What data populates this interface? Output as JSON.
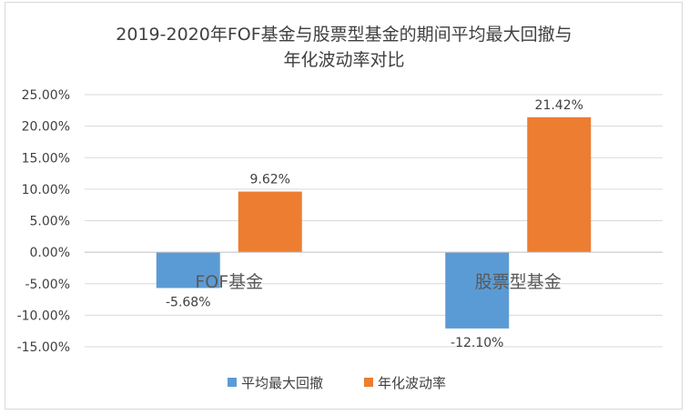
{
  "chart_data": {
    "type": "bar",
    "title_lines": [
      "2019-2020年FOF基金与股票型基金的期间平均最大回撤与",
      "年化波动率对比"
    ],
    "categories": [
      "FOF基金",
      "股票型基金"
    ],
    "series": [
      {
        "name": "平均最大回撤",
        "values": [
          -5.68,
          -12.1
        ],
        "labels": [
          "-5.68%",
          "-12.10%"
        ],
        "color": "#5b9bd5"
      },
      {
        "name": "年化波动率",
        "values": [
          9.62,
          21.42
        ],
        "labels": [
          "9.62%",
          "21.42%"
        ],
        "color": "#ed7d31"
      }
    ],
    "ylim": [
      -15,
      25
    ],
    "ytick_values": [
      25,
      20,
      15,
      10,
      5,
      0,
      -5,
      -10,
      -15
    ],
    "ytick_labels": [
      "25.00%",
      "20.00%",
      "15.00%",
      "10.00%",
      "5.00%",
      "0.00%",
      "-5.00%",
      "-10.00%",
      "-15.00%"
    ],
    "grid": true,
    "legend_position": "bottom",
    "xlabel": "",
    "ylabel": ""
  }
}
